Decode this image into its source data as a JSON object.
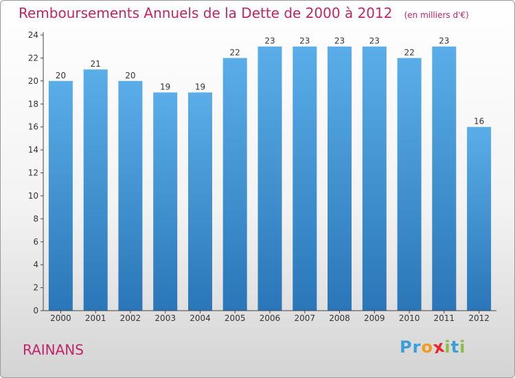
{
  "title": "Remboursements Annuels de la Dette de 2000 à 2012",
  "subtitle": "(en milliers d'€)",
  "commune": "RAINANS",
  "logo": {
    "text": "Proxiti",
    "letters": [
      "P",
      "r",
      "o",
      "x",
      "i",
      "t",
      "i"
    ],
    "colors": [
      "#3a9fd8",
      "#3a9fd8",
      "#f39a1c",
      "#e8232a",
      "#88c03f",
      "#3a9fd8",
      "#88c03f"
    ]
  },
  "colors": {
    "title": "#c0246a",
    "bar_top": "#5aaee8",
    "bar_bottom": "#2a76b8",
    "axis": "#444444"
  },
  "chart_data": {
    "type": "bar",
    "categories": [
      "2000",
      "2001",
      "2002",
      "2003",
      "2004",
      "2005",
      "2006",
      "2007",
      "2008",
      "2009",
      "2010",
      "2011",
      "2012"
    ],
    "values": [
      20,
      21,
      20,
      19,
      19,
      22,
      23,
      23,
      23,
      23,
      22,
      23,
      16
    ],
    "data_labels": [
      "20",
      "21",
      "20",
      "19",
      "19",
      "22",
      "23",
      "23",
      "23",
      "23",
      "22",
      "23",
      "16"
    ],
    "yticks": [
      "0",
      "2",
      "4",
      "6",
      "8",
      "10",
      "12",
      "14",
      "16",
      "18",
      "20",
      "22",
      "24"
    ],
    "ylim": [
      0,
      24
    ],
    "title": "Remboursements Annuels de la Dette de 2000 à 2012",
    "xlabel": "",
    "ylabel": "",
    "grid": false,
    "legend": false
  }
}
